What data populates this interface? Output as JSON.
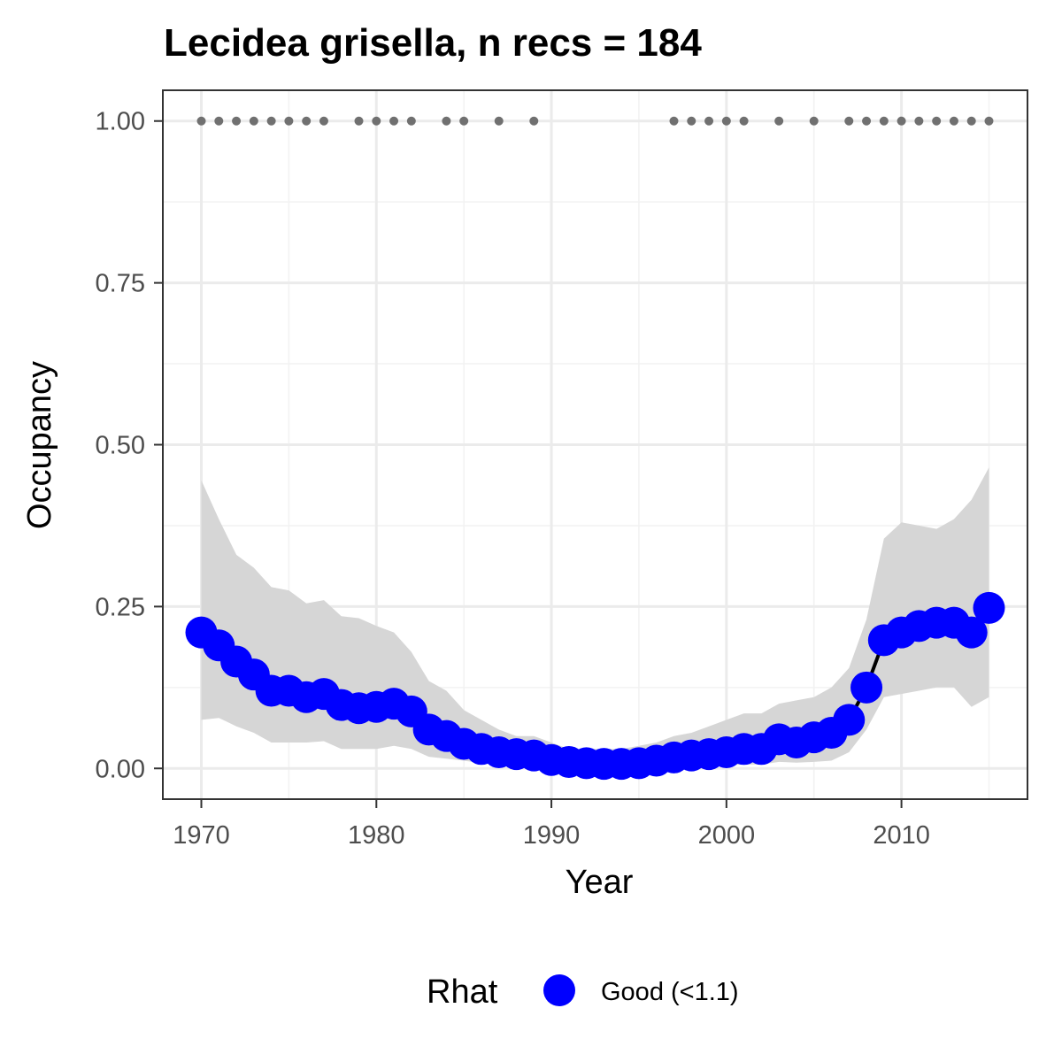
{
  "chart_data": {
    "type": "line",
    "title": "Lecidea grisella, n recs = 184",
    "xlabel": "Year",
    "ylabel": "Occupancy",
    "xlim": [
      1967.8,
      1917.2
    ],
    "ylim": [
      -0.0475,
      1.0475
    ],
    "x_ticks": [
      1970,
      1980,
      1990,
      2000,
      2010
    ],
    "x_tick_labels": [
      "1970",
      "1980",
      "1990",
      "2000",
      "2010"
    ],
    "y_ticks": [
      0,
      0.25,
      0.5,
      0.75,
      1.0
    ],
    "y_tick_labels": [
      "0.00",
      "0.25",
      "0.50",
      "0.75",
      "1.00"
    ],
    "grid": true,
    "legend": {
      "position": "bottom",
      "title": "Rhat",
      "entries": [
        "Good (<1.1)"
      ]
    },
    "colors": {
      "point": "#0000ff",
      "line": "#000000",
      "ribbon": "#d6d6d6",
      "record_dot": "#707070"
    },
    "series": [
      {
        "x": [
          1970,
          1971,
          1972,
          1973,
          1974,
          1975,
          1976,
          1977,
          1978,
          1979,
          1980,
          1981,
          1982,
          1983,
          1984,
          1985,
          1986,
          1987,
          1988,
          1989,
          1990,
          1991,
          1992,
          1993,
          1994,
          1995,
          1996,
          1997,
          1998,
          1999,
          2000,
          2001,
          2002,
          2003,
          2004,
          2005,
          2006,
          2007,
          2008,
          2009,
          2010,
          2011,
          2012,
          2013,
          2014,
          2015
        ],
        "y": [
          0.21,
          0.19,
          0.165,
          0.145,
          0.12,
          0.12,
          0.11,
          0.115,
          0.098,
          0.093,
          0.095,
          0.1,
          0.088,
          0.06,
          0.05,
          0.038,
          0.03,
          0.025,
          0.022,
          0.02,
          0.013,
          0.01,
          0.008,
          0.007,
          0.007,
          0.008,
          0.012,
          0.017,
          0.02,
          0.022,
          0.025,
          0.03,
          0.03,
          0.045,
          0.04,
          0.048,
          0.055,
          0.075,
          0.125,
          0.198,
          0.21,
          0.22,
          0.225,
          0.225,
          0.21,
          0.248
        ],
        "lower": [
          0.075,
          0.078,
          0.065,
          0.055,
          0.04,
          0.04,
          0.04,
          0.042,
          0.03,
          0.03,
          0.03,
          0.035,
          0.03,
          0.018,
          0.015,
          0.012,
          0.008,
          0.005,
          0.005,
          0.004,
          0.002,
          0.001,
          0.001,
          0.001,
          0.001,
          0.001,
          0.002,
          0.003,
          0.004,
          0.004,
          0.005,
          0.006,
          0.006,
          0.01,
          0.009,
          0.01,
          0.012,
          0.025,
          0.06,
          0.11,
          0.115,
          0.12,
          0.125,
          0.125,
          0.095,
          0.11
        ],
        "upper": [
          0.445,
          0.385,
          0.33,
          0.31,
          0.28,
          0.275,
          0.255,
          0.26,
          0.235,
          0.232,
          0.22,
          0.21,
          0.18,
          0.135,
          0.12,
          0.09,
          0.075,
          0.06,
          0.05,
          0.05,
          0.04,
          0.03,
          0.03,
          0.03,
          0.03,
          0.035,
          0.04,
          0.05,
          0.055,
          0.065,
          0.075,
          0.085,
          0.085,
          0.1,
          0.105,
          0.11,
          0.125,
          0.155,
          0.23,
          0.355,
          0.38,
          0.375,
          0.37,
          0.385,
          0.415,
          0.465
        ]
      }
    ],
    "records": {
      "y": 1.0,
      "x": [
        1970,
        1971,
        1972,
        1973,
        1974,
        1975,
        1976,
        1977,
        1979,
        1980,
        1981,
        1982,
        1984,
        1985,
        1987,
        1989,
        1997,
        1998,
        1999,
        2000,
        2001,
        2003,
        2005,
        2007,
        2008,
        2009,
        2010,
        2011,
        2012,
        2013,
        2014,
        2015
      ]
    }
  }
}
